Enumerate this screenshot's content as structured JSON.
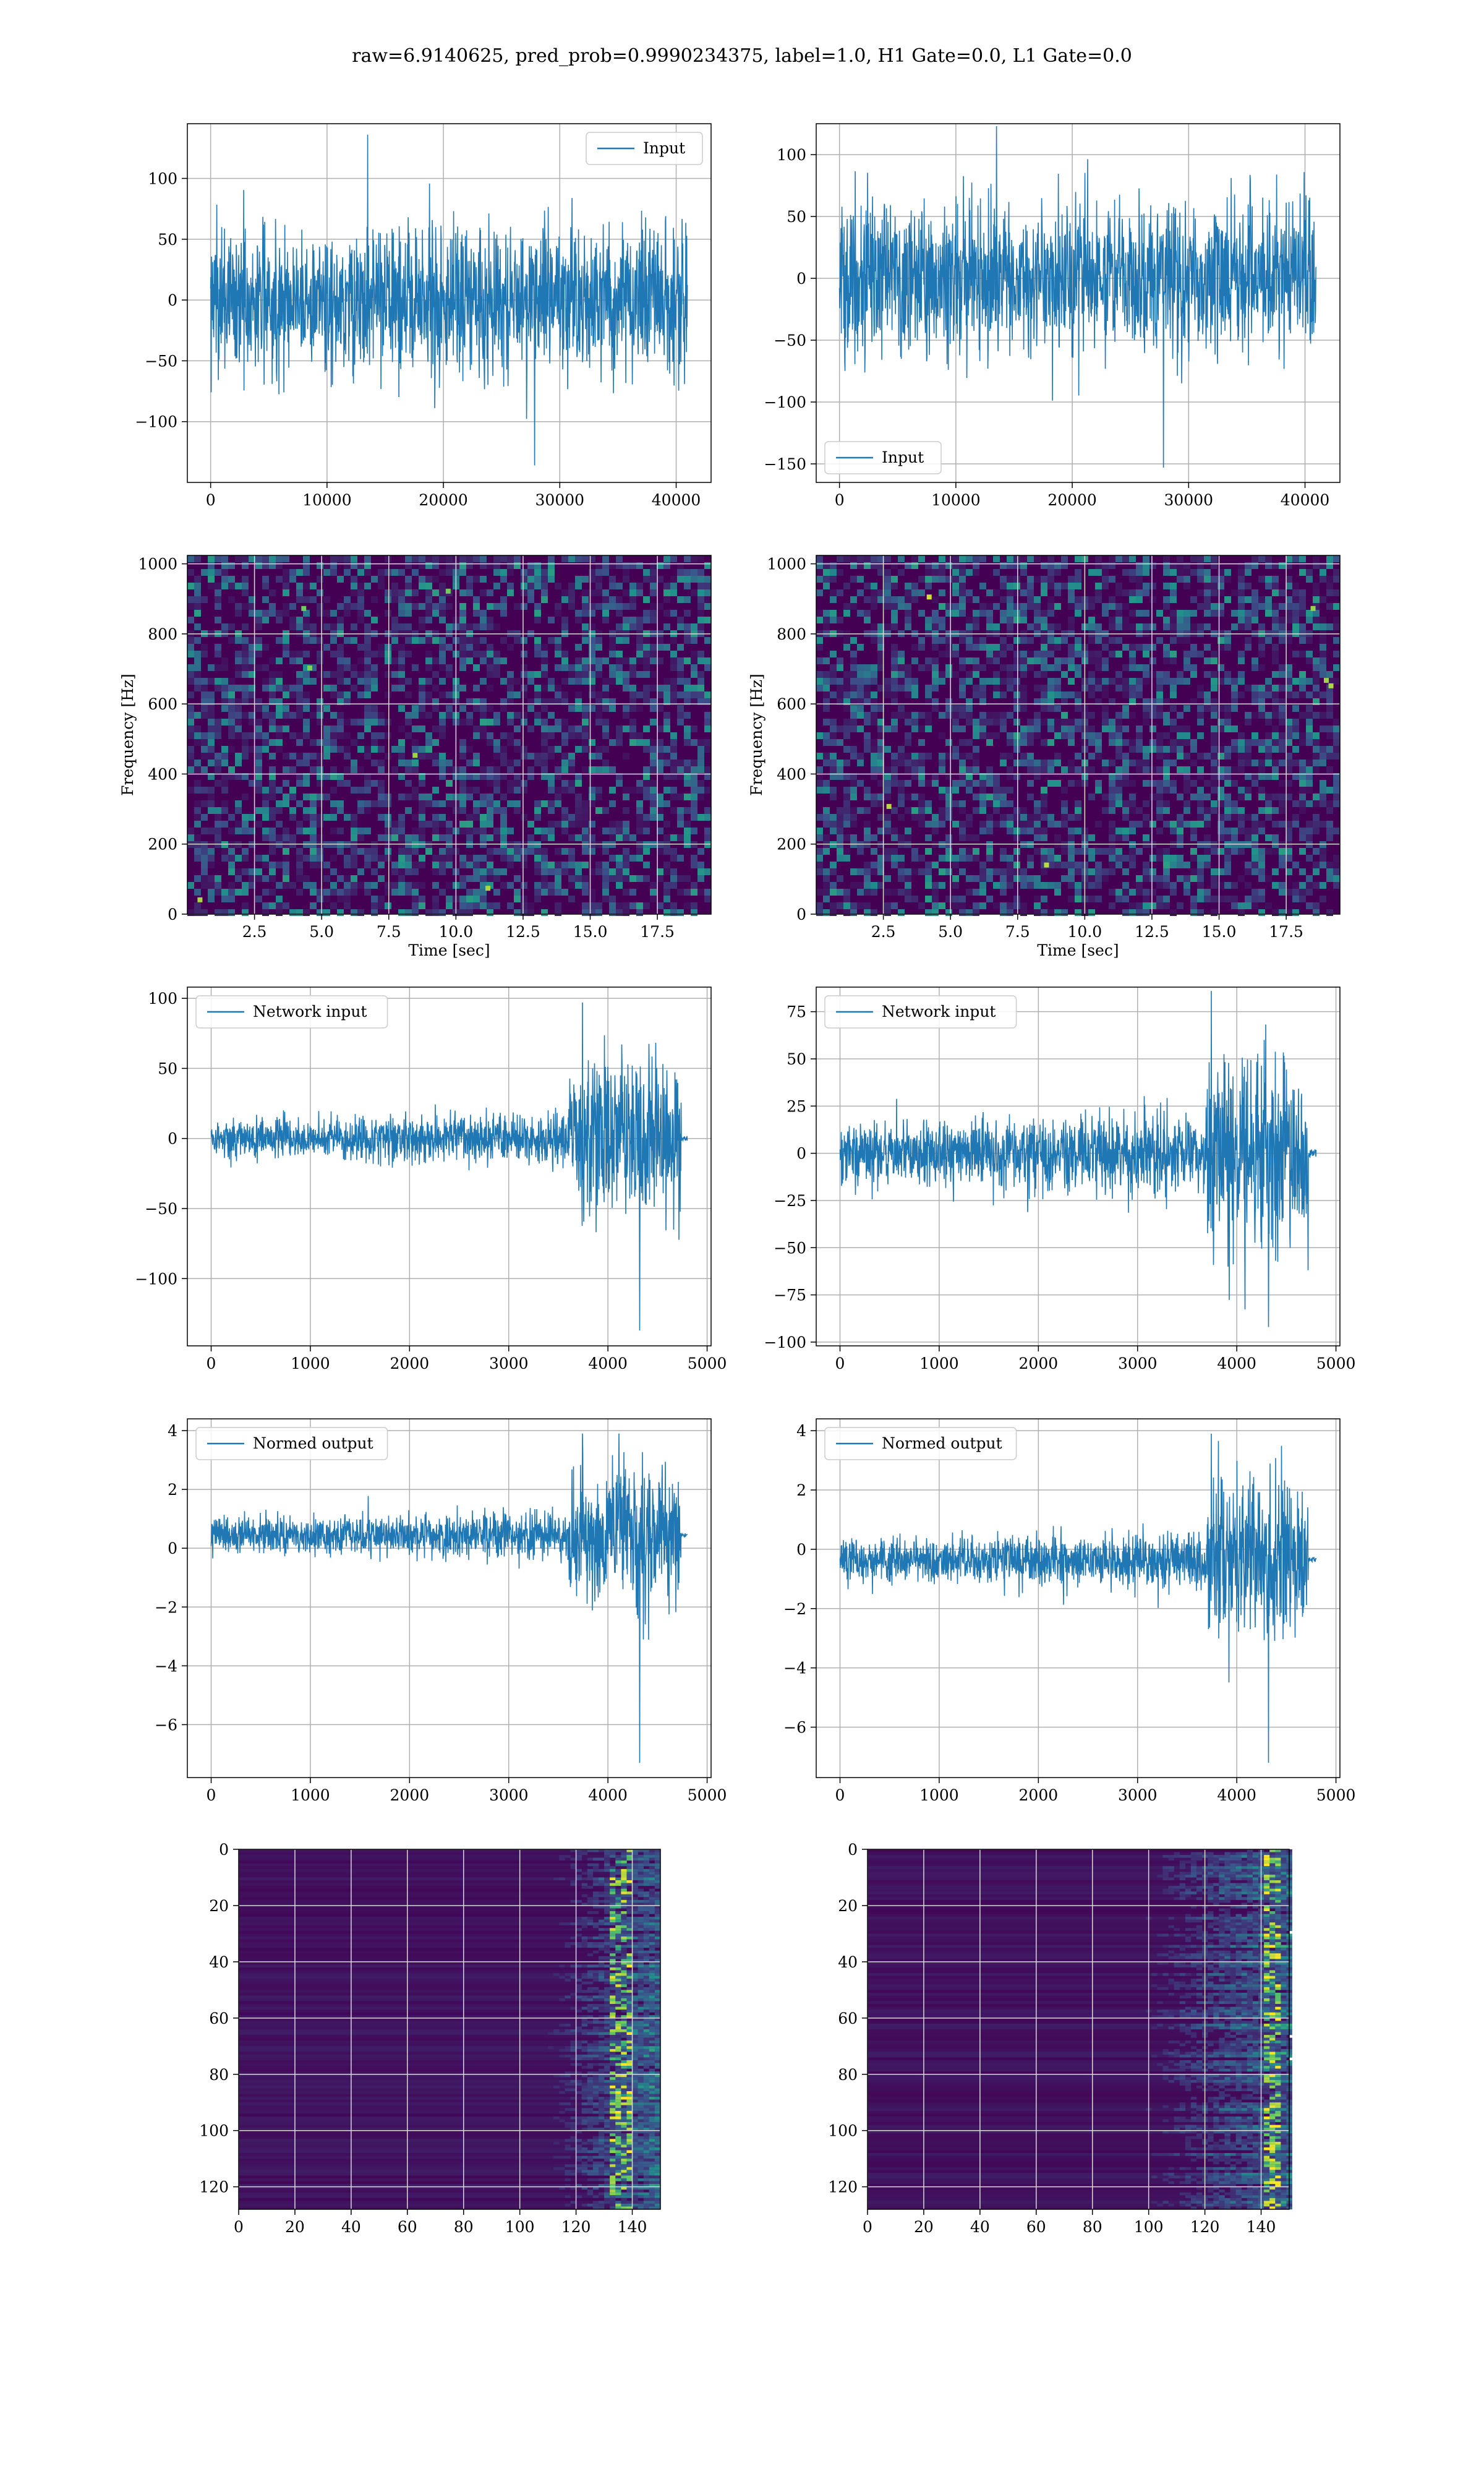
{
  "figure": {
    "suptitle": "raw=6.9140625, pred_prob=0.9990234375, label=1.0, H1 Gate=0.0, L1 Gate=0.0"
  },
  "colors": {
    "line": "#1f77b4",
    "grid": "#b0b0b0",
    "viridis_low": "#440154",
    "viridis_mid": "#21918c",
    "viridis_high": "#fde725"
  },
  "chart_data": [
    {
      "id": "h1-input",
      "type": "line",
      "legend": "Input",
      "legend_loc": "upper right",
      "xlim": [
        -2000,
        43000
      ],
      "ylim": [
        -150,
        145
      ],
      "xticks": [
        0,
        10000,
        20000,
        30000,
        40000
      ],
      "yticks": [
        -100,
        -50,
        0,
        50,
        100
      ],
      "grid": true,
      "series": [
        {
          "name": "Input",
          "x_range": [
            0,
            40960
          ],
          "baseline": 0,
          "noise_std": 30,
          "peak_max": 136,
          "peak_min": -136
        }
      ]
    },
    {
      "id": "l1-input",
      "type": "line",
      "legend": "Input",
      "legend_loc": "lower left",
      "xlim": [
        -2000,
        43000
      ],
      "ylim": [
        -165,
        125
      ],
      "xticks": [
        0,
        10000,
        20000,
        30000,
        40000
      ],
      "yticks": [
        -150,
        -100,
        -50,
        0,
        50,
        100
      ],
      "grid": true,
      "series": [
        {
          "name": "Input",
          "x_range": [
            0,
            40960
          ],
          "baseline": 0,
          "noise_std": 30,
          "peak_max": 123,
          "peak_min": -153
        }
      ]
    },
    {
      "id": "h1-spectrogram",
      "type": "heatmap",
      "xlabel": "Time [sec]",
      "ylabel": "Frequency [Hz]",
      "xlim": [
        0,
        19.5
      ],
      "ylim": [
        0,
        1024
      ],
      "xticks": [
        "2.5",
        "5.0",
        "7.5",
        "10.0",
        "12.5",
        "15.0",
        "17.5"
      ],
      "xtick_values": [
        2.5,
        5.0,
        7.5,
        10.0,
        12.5,
        15.0,
        17.5
      ],
      "yticks": [
        0,
        200,
        400,
        600,
        800,
        1000
      ],
      "colormap": "viridis",
      "grid": true
    },
    {
      "id": "l1-spectrogram",
      "type": "heatmap",
      "xlabel": "Time [sec]",
      "ylabel": "Frequency [Hz]",
      "xlim": [
        0,
        19.5
      ],
      "ylim": [
        0,
        1024
      ],
      "xticks": [
        "2.5",
        "5.0",
        "7.5",
        "10.0",
        "12.5",
        "15.0",
        "17.5"
      ],
      "xtick_values": [
        2.5,
        5.0,
        7.5,
        10.0,
        12.5,
        15.0,
        17.5
      ],
      "yticks": [
        0,
        200,
        400,
        600,
        800,
        1000
      ],
      "colormap": "viridis",
      "grid": true
    },
    {
      "id": "h1-network-input",
      "type": "line",
      "legend": "Network input",
      "legend_loc": "upper left",
      "xlim": [
        -240,
        5040
      ],
      "ylim": [
        -148,
        108
      ],
      "xticks": [
        0,
        1000,
        2000,
        3000,
        4000,
        5000
      ],
      "yticks": [
        -100,
        -50,
        0,
        50,
        100
      ],
      "grid": true,
      "series": [
        {
          "name": "Network input",
          "x_range": [
            0,
            4800
          ],
          "signal_end": 4740,
          "onset": 3600,
          "baseline": 0,
          "pre_std": 7,
          "post_std": 28,
          "peak_max": 97,
          "peak_min": -137
        }
      ]
    },
    {
      "id": "l1-network-input",
      "type": "line",
      "legend": "Network input",
      "legend_loc": "upper left",
      "xlim": [
        -240,
        5040
      ],
      "ylim": [
        -102,
        88
      ],
      "xticks": [
        0,
        1000,
        2000,
        3000,
        4000,
        5000
      ],
      "yticks": [
        -100,
        -75,
        -50,
        -25,
        0,
        25,
        50,
        75
      ],
      "grid": true,
      "series": [
        {
          "name": "Network input",
          "x_range": [
            0,
            4800
          ],
          "signal_end": 4720,
          "onset": 3700,
          "baseline": 0,
          "pre_std": 8,
          "post_std": 25,
          "peak_max": 86,
          "peak_min": -92
        }
      ]
    },
    {
      "id": "h1-normed-output",
      "type": "line",
      "legend": "Normed output",
      "legend_loc": "upper left",
      "xlim": [
        -240,
        5040
      ],
      "ylim": [
        -7.8,
        4.4
      ],
      "xticks": [
        0,
        1000,
        2000,
        3000,
        4000,
        5000
      ],
      "yticks": [
        -6,
        -4,
        -2,
        0,
        2,
        4
      ],
      "grid": true,
      "series": [
        {
          "name": "Normed output",
          "x_range": [
            0,
            4800
          ],
          "signal_end": 4740,
          "onset": 3600,
          "baseline": 0.45,
          "pre_std": 0.3,
          "post_std": 1.2,
          "peak_max": 3.9,
          "peak_min": -7.3
        }
      ]
    },
    {
      "id": "l1-normed-output",
      "type": "line",
      "legend": "Normed output",
      "legend_loc": "upper left",
      "xlim": [
        -240,
        5040
      ],
      "ylim": [
        -7.7,
        4.4
      ],
      "xticks": [
        0,
        1000,
        2000,
        3000,
        4000,
        5000
      ],
      "yticks": [
        -6,
        -4,
        -2,
        0,
        2,
        4
      ],
      "grid": true,
      "series": [
        {
          "name": "Normed output",
          "x_range": [
            0,
            4800
          ],
          "signal_end": 4720,
          "onset": 3700,
          "baseline": -0.35,
          "pre_std": 0.35,
          "post_std": 1.3,
          "peak_max": 3.9,
          "peak_min": -7.2
        }
      ]
    },
    {
      "id": "h1-feature-map",
      "type": "heatmap",
      "xlim": [
        0,
        150
      ],
      "ylim": [
        128,
        0
      ],
      "xticks": [
        0,
        20,
        40,
        60,
        80,
        100,
        120,
        140
      ],
      "yticks": [
        0,
        20,
        40,
        60,
        80,
        100,
        120
      ],
      "colormap": "viridis",
      "grid": true,
      "activation_onset": 100,
      "hot_column": 135
    },
    {
      "id": "l1-feature-map",
      "type": "heatmap",
      "xlim": [
        0,
        150
      ],
      "ylim": [
        128,
        0
      ],
      "xticks": [
        0,
        20,
        40,
        60,
        80,
        100,
        120,
        140
      ],
      "yticks": [
        0,
        20,
        40,
        60,
        80,
        100,
        120
      ],
      "colormap": "viridis",
      "grid": true,
      "activation_onset": 85,
      "hot_column": 143
    }
  ]
}
